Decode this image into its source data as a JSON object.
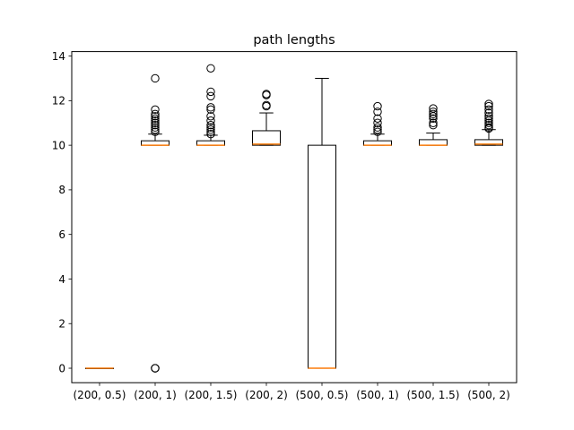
{
  "chart_data": {
    "type": "box",
    "title": "path lengths",
    "xlabel": "",
    "ylabel": "",
    "ylim": [
      -0.65,
      14.2
    ],
    "yticks": [
      0,
      2,
      4,
      6,
      8,
      10,
      12,
      14
    ],
    "grid": false,
    "colors": {
      "box": "#000000",
      "median": "#ff7f0e",
      "flier": "#000000"
    },
    "categories": [
      "(200, 0.5)",
      "(200, 1)",
      "(200, 1.5)",
      "(200, 2)",
      "(500, 0.5)",
      "(500, 1)",
      "(500, 1.5)",
      "(500, 2)"
    ],
    "boxes": [
      {
        "whislo": 0,
        "q1": 0,
        "med": 0,
        "q3": 0,
        "whishi": 0,
        "fliers": []
      },
      {
        "whislo": 10,
        "q1": 10,
        "med": 10,
        "q3": 10.2,
        "whishi": 10.5,
        "fliers": [
          0,
          0,
          0,
          10.6,
          10.7,
          10.8,
          10.9,
          11.0,
          11.1,
          11.2,
          11.3,
          11.4,
          11.6,
          13.0
        ]
      },
      {
        "whislo": 10,
        "q1": 10,
        "med": 10,
        "q3": 10.2,
        "whishi": 10.45,
        "fliers": [
          10.5,
          10.6,
          10.7,
          10.8,
          10.9,
          11.1,
          11.3,
          11.6,
          11.7,
          12.2,
          12.4,
          13.45
        ]
      },
      {
        "whislo": 10,
        "q1": 10,
        "med": 10.05,
        "q3": 10.65,
        "whishi": 11.45,
        "fliers": [
          11.75,
          11.8,
          12.25,
          12.3
        ]
      },
      {
        "whislo": 0,
        "q1": 0,
        "med": 0,
        "q3": 10,
        "whishi": 13,
        "fliers": []
      },
      {
        "whislo": 10,
        "q1": 10,
        "med": 10,
        "q3": 10.2,
        "whishi": 10.5,
        "fliers": [
          10.6,
          10.7,
          10.8,
          11.0,
          11.2,
          11.5,
          11.75
        ]
      },
      {
        "whislo": 10,
        "q1": 10,
        "med": 10,
        "q3": 10.25,
        "whishi": 10.55,
        "fliers": [
          10.9,
          11.0,
          11.2,
          11.3,
          11.4,
          11.5,
          11.65
        ]
      },
      {
        "whislo": 10,
        "q1": 10,
        "med": 10.05,
        "q3": 10.25,
        "whishi": 10.7,
        "fliers": [
          10.75,
          10.8,
          10.9,
          11.0,
          11.1,
          11.2,
          11.3,
          11.45,
          11.6,
          11.75,
          11.85
        ]
      }
    ]
  }
}
